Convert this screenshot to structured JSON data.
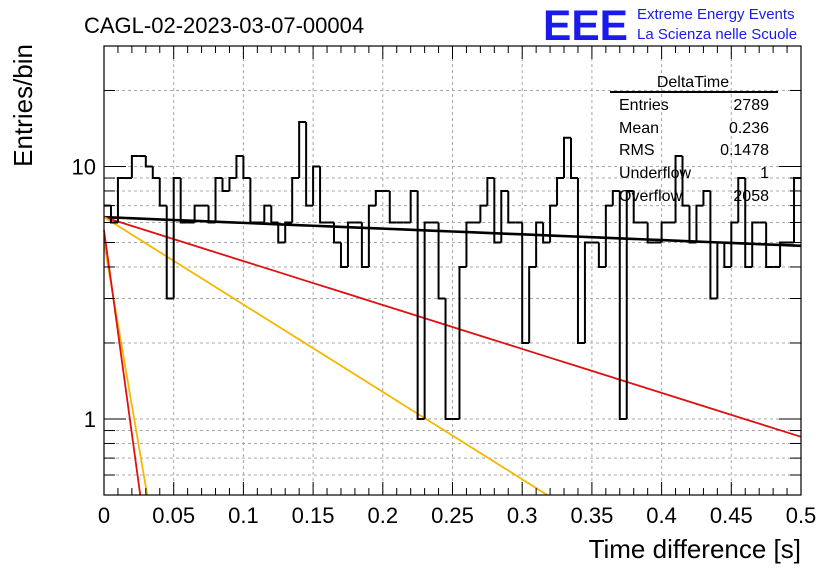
{
  "header": {
    "run_title": "CAGL-02-2023-03-07-00004",
    "logo_text": "EEE",
    "org_line1": "Extreme Energy Events",
    "org_line2": "La Scienza nelle Scuole"
  },
  "stats_box": {
    "title": "DeltaTime",
    "rows": [
      {
        "label": "Entries",
        "value": "2789"
      },
      {
        "label": "Mean",
        "value": "0.236"
      },
      {
        "label": "RMS",
        "value": "0.1478"
      },
      {
        "label": "Underflow",
        "value": "1"
      },
      {
        "label": "Overflow",
        "value": "2058"
      }
    ]
  },
  "colors": {
    "histogram": "#000000",
    "fit_black": "#000000",
    "fit_red": "#e01010",
    "fit_yellow": "#f5b800",
    "grid": "#a8a8a8",
    "logo": "#1a1aee"
  },
  "chart_data": {
    "type": "step-histogram",
    "xlabel": "Time difference [s]",
    "ylabel": "Entries/bin",
    "xlim": [
      0,
      0.5
    ],
    "ylim": [
      0.5,
      30
    ],
    "y_scale": "log",
    "grid": true,
    "x_ticks": [
      "0",
      "0.05",
      "0.1",
      "0.15",
      "0.2",
      "0.25",
      "0.3",
      "0.35",
      "0.4",
      "0.45",
      "0.5"
    ],
    "y_ticks": [
      "1",
      "10"
    ],
    "bin_width": 0.005,
    "bin_start": 0,
    "values": [
      7,
      6,
      9,
      9,
      11,
      11,
      10,
      9,
      7,
      3,
      9,
      6,
      6,
      7,
      7,
      6,
      9,
      8,
      9,
      11,
      9,
      6,
      6,
      7,
      6,
      5,
      6,
      9,
      15,
      7,
      10,
      6,
      6,
      5,
      4,
      6,
      6,
      4,
      7,
      8,
      8,
      6,
      6,
      6,
      8,
      1,
      6,
      6,
      3,
      1,
      1,
      4,
      6,
      6,
      7,
      9,
      5,
      8,
      6,
      6,
      2,
      4,
      6,
      5,
      7,
      9,
      13,
      9,
      2,
      5,
      5,
      4,
      7,
      8,
      1,
      8,
      6,
      6,
      5,
      5,
      6,
      6,
      11,
      7,
      5,
      7,
      8,
      3,
      5,
      4,
      6,
      9,
      4,
      6,
      6,
      4,
      4,
      5,
      5,
      9
    ],
    "fit_lines": [
      {
        "color": "black",
        "x": [
          0,
          0.5
        ],
        "y": [
          6.3,
          4.85
        ]
      },
      {
        "color": "red",
        "x": [
          0,
          0.5
        ],
        "y": [
          6.3,
          0.85
        ]
      },
      {
        "color": "yellow",
        "x": [
          0,
          0.318
        ],
        "y": [
          6.3,
          0.5
        ]
      },
      {
        "color": "yellow",
        "x": [
          0,
          0.031
        ],
        "y": [
          5.0,
          0.5
        ]
      },
      {
        "color": "red",
        "x": [
          0,
          0.026
        ],
        "y": [
          5.6,
          0.5
        ]
      }
    ]
  }
}
